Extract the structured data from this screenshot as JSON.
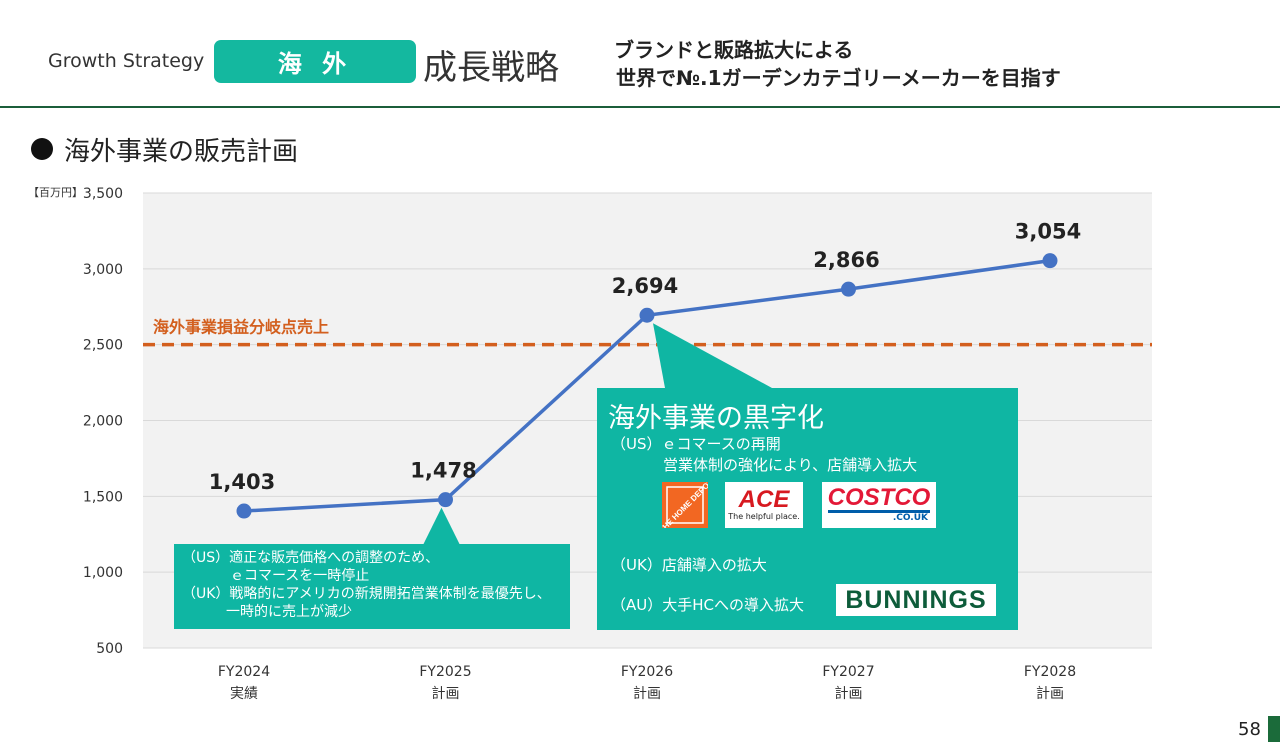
{
  "header": {
    "growth_label": "Growth Strategy",
    "region": "海 外",
    "strategy_title": "成長戦略",
    "slogan_line1": "ブランドと販路拡大による",
    "slogan_line2": "世界で№.1ガーデンカテゴリーメーカーを目指す"
  },
  "section_title": "海外事業の販売計画",
  "colors": {
    "accent": "#14b89f",
    "line": "#4472c4",
    "breakeven": "#d35f1e",
    "grid": "#d9d9d9"
  },
  "chart_data": {
    "type": "line",
    "unit_label": "【百万円】",
    "categories": [
      "FY2024",
      "FY2025",
      "FY2026",
      "FY2027",
      "FY2028"
    ],
    "category_sublabels": [
      "実績",
      "計画",
      "計画",
      "計画",
      "計画"
    ],
    "values": [
      1403,
      1478,
      2694,
      2866,
      3054
    ],
    "value_labels": [
      "1,403",
      "1,478",
      "2,694",
      "2,866",
      "3,054"
    ],
    "ylim": [
      500,
      3500
    ],
    "yticks": [
      500,
      1000,
      1500,
      2000,
      2500,
      3000,
      3500
    ],
    "ytick_labels": [
      "500",
      "1,000",
      "1,500",
      "2,000",
      "2,500",
      "3,000",
      "3,500"
    ],
    "breakeven": {
      "value": 2500,
      "label": "海外事業損益分岐点売上"
    },
    "grid": true
  },
  "callout_left": {
    "lines": [
      "（US）適正な販売価格への調整のため、",
      "ｅコマースを一時停止",
      "（UK）戦略的にアメリカの新規開拓営業体制を最優先し、",
      "一時的に売上が減少"
    ]
  },
  "callout_right": {
    "title": "海外事業の黒字化",
    "us_line1": "（US）ｅコマースの再開",
    "us_line2": "営業体制の強化により、店舗導入拡大",
    "uk_line": "（UK）店舗導入の拡大",
    "au_line": "（AU）大手HCへの導入拡大"
  },
  "logos": {
    "homedepot": "THE HOME DEPOT",
    "ace_main": "ACE",
    "ace_sub": "The helpful place.",
    "costco_main": "COSTCO",
    "costco_sub": ".CO.UK",
    "bunnings": "BUNNINGS"
  },
  "page_number": "58"
}
